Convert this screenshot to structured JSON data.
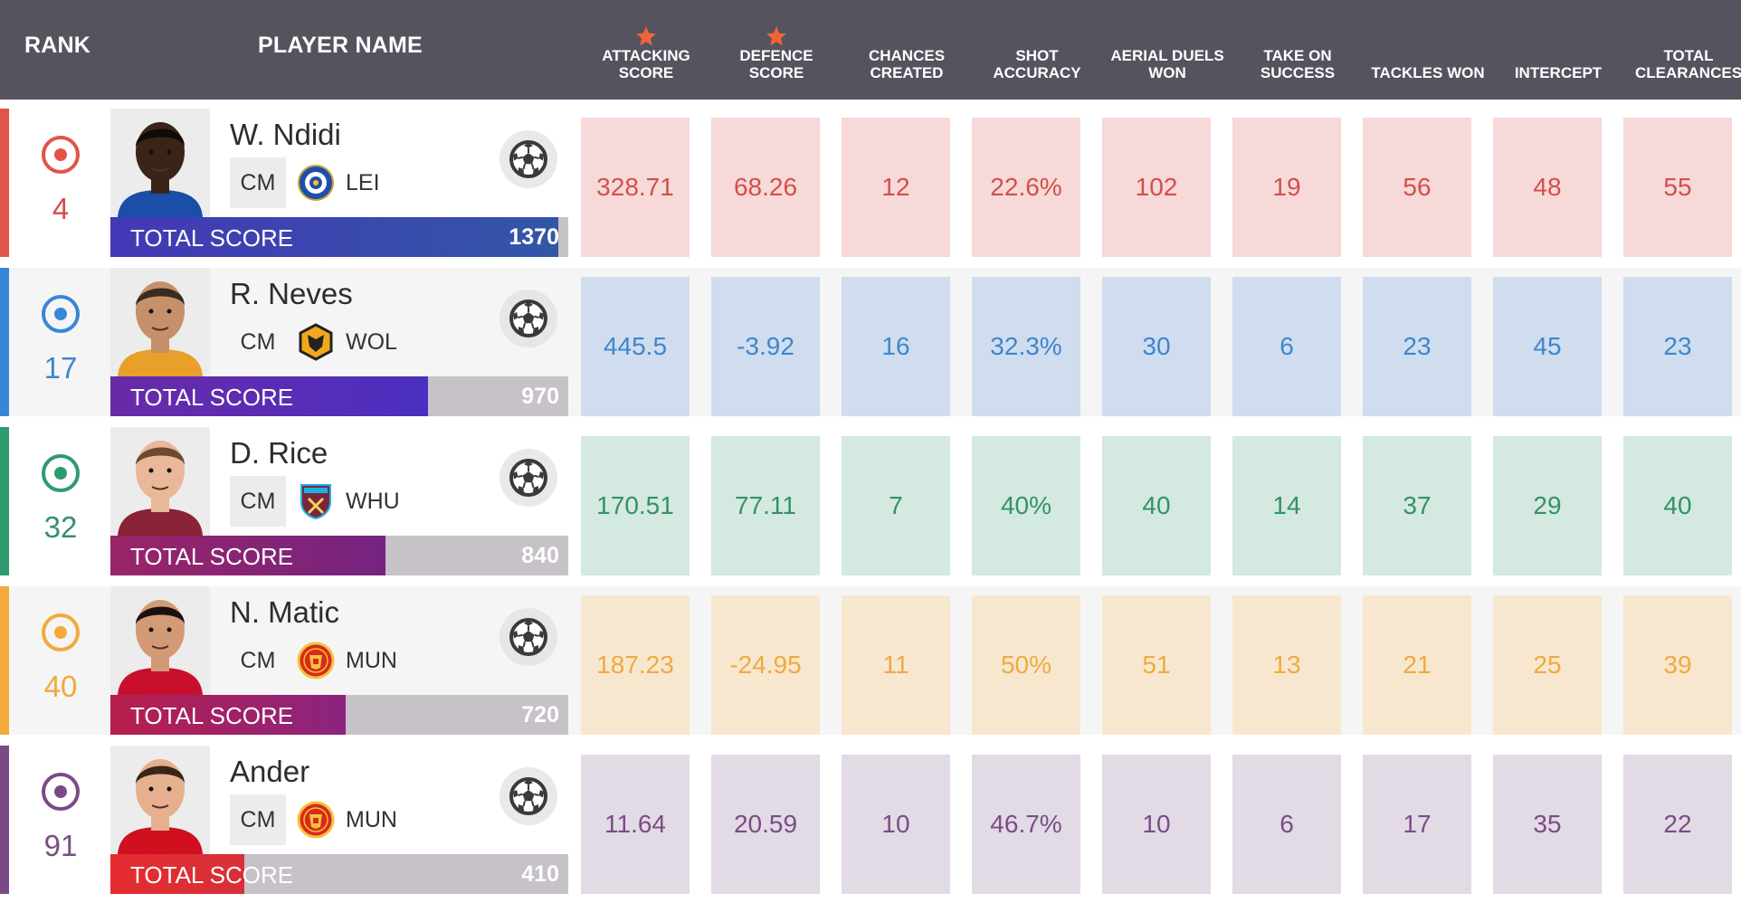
{
  "header": {
    "rank": "RANK",
    "player_name": "PLAYER NAME",
    "columns": [
      {
        "line1": "ATTACKING",
        "line2": "SCORE",
        "star": true
      },
      {
        "line1": "DEFENCE",
        "line2": "SCORE",
        "star": true
      },
      {
        "line1": "CHANCES",
        "line2": "CREATED",
        "star": false
      },
      {
        "line1": "SHOT",
        "line2": "ACCURACY",
        "star": false
      },
      {
        "line1": "AERIAL DUELS",
        "line2": "WON",
        "star": false
      },
      {
        "line1": "TAKE ON",
        "line2": "SUCCESS",
        "star": false
      },
      {
        "line1": "",
        "line2": "TACKLES WON",
        "star": false
      },
      {
        "line1": "",
        "line2": "INTERCEPT",
        "star": false
      },
      {
        "line1": "TOTAL",
        "line2": "CLEARANCES",
        "star": false
      }
    ],
    "star_color": "#f0643a"
  },
  "score_label": "TOTAL SCORE",
  "max_score": 1400,
  "players": [
    {
      "rank": "4",
      "name": "W. Ndidi",
      "position": "CM",
      "team": "LEI",
      "crest": "leicester-crest-icon",
      "total_score": 1370,
      "total_score_text": "1370",
      "accent": "#e05548",
      "text_color": "#d2504a",
      "cell_bg": "#f6d9d8",
      "bar_gradient": [
        "#4338b6",
        "#3356a6"
      ],
      "stats": [
        "328.71",
        "68.26",
        "12",
        "22.6%",
        "102",
        "19",
        "56",
        "48",
        "55"
      ]
    },
    {
      "rank": "17",
      "name": "R. Neves",
      "position": "CM",
      "team": "WOL",
      "crest": "wolves-crest-icon",
      "total_score": 970,
      "total_score_text": "970",
      "accent": "#3a86d6",
      "text_color": "#3f86cc",
      "cell_bg": "#cfddef",
      "bar_gradient": [
        "#6a2aa8",
        "#4a2fc0"
      ],
      "stats": [
        "445.5",
        "-3.92",
        "16",
        "32.3%",
        "30",
        "6",
        "23",
        "45",
        "23"
      ]
    },
    {
      "rank": "32",
      "name": "D. Rice",
      "position": "CM",
      "team": "WHU",
      "crest": "westham-crest-icon",
      "total_score": 840,
      "total_score_text": "840",
      "accent": "#2f9a6f",
      "text_color": "#35906b",
      "cell_bg": "#d4e9e0",
      "bar_gradient": [
        "#9a2468",
        "#742480"
      ],
      "stats": [
        "170.51",
        "77.11",
        "7",
        "40%",
        "40",
        "14",
        "37",
        "29",
        "40"
      ]
    },
    {
      "rank": "40",
      "name": "N. Matic",
      "position": "CM",
      "team": "MUN",
      "crest": "manutd-crest-icon",
      "total_score": 720,
      "total_score_text": "720",
      "accent": "#f2aa3b",
      "text_color": "#efaa3f",
      "cell_bg": "#f8e7cf",
      "bar_gradient": [
        "#b81e4c",
        "#8a2480"
      ],
      "stats": [
        "187.23",
        "-24.95",
        "11",
        "50%",
        "51",
        "13",
        "21",
        "25",
        "39"
      ]
    },
    {
      "rank": "91",
      "name": "Ander",
      "position": "CM",
      "team": "MUN",
      "crest": "manutd-crest-icon",
      "total_score": 410,
      "total_score_text": "410",
      "accent": "#7a4a88",
      "text_color": "#7a4d86",
      "cell_bg": "#e2dae5",
      "bar_gradient": [
        "#e42c30",
        "#d83038"
      ],
      "stats": [
        "11.64",
        "20.59",
        "10",
        "46.7%",
        "10",
        "6",
        "17",
        "35",
        "22"
      ]
    }
  ]
}
